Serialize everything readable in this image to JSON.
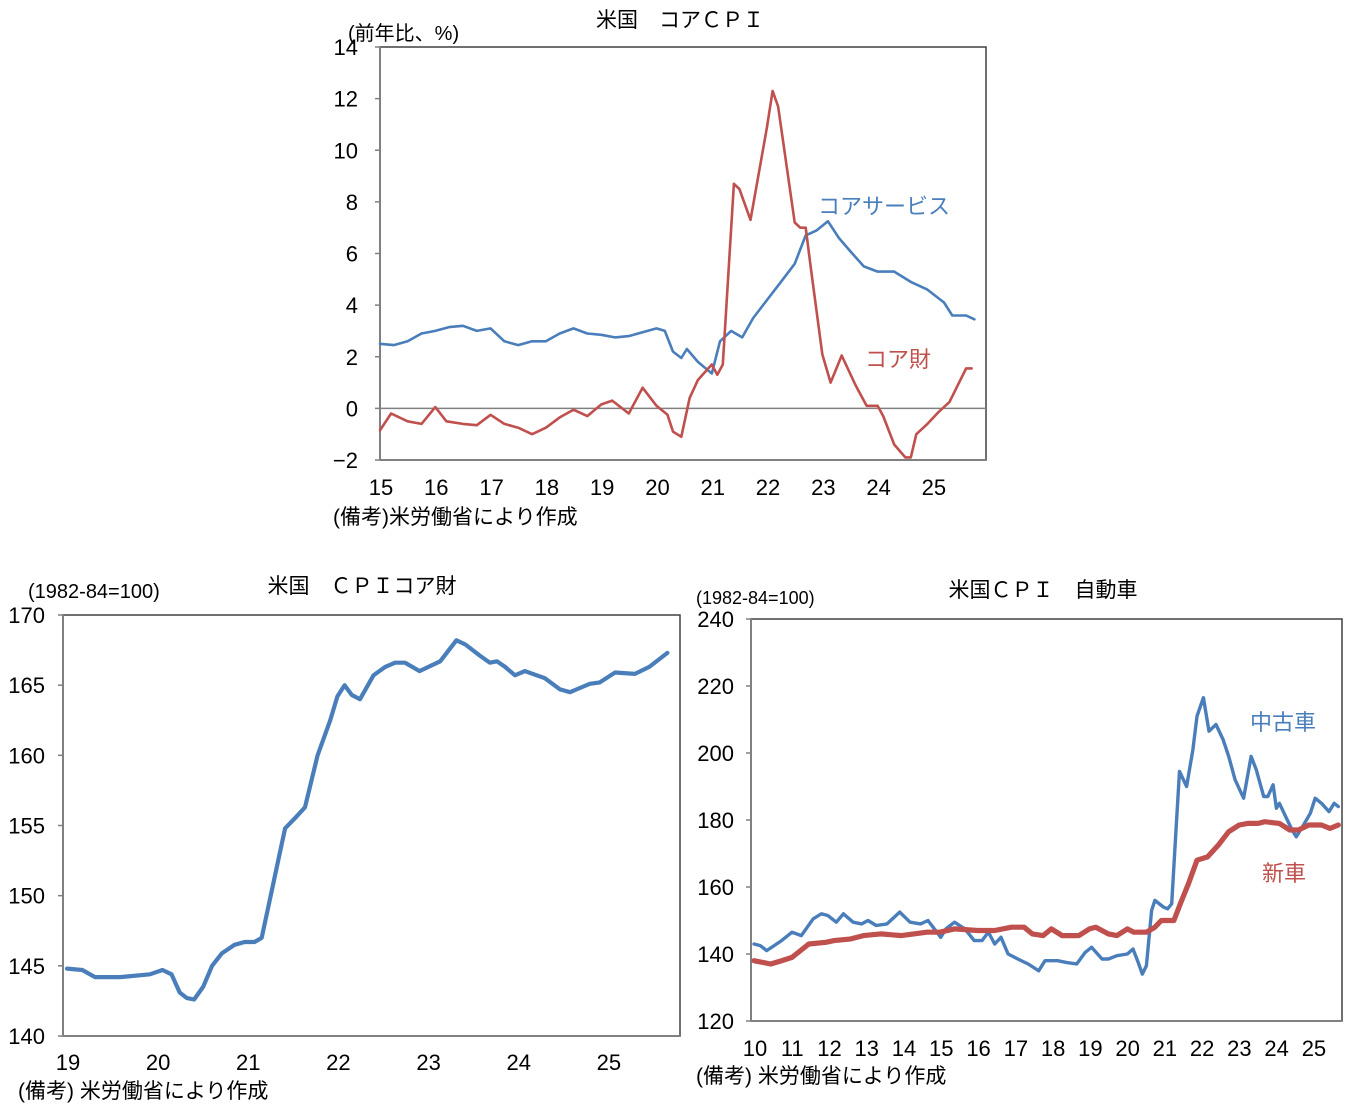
{
  "colors": {
    "blue": "#4a7ebb",
    "red": "#c0504d",
    "axis": "#808080",
    "frame": "#404040"
  },
  "chart_data": [
    {
      "id": "core-cpi",
      "type": "line",
      "title": "米国　コアＣＰＩ",
      "ylabel": "(前年比、%)",
      "source": "(備考)米労働省により作成",
      "xlim": [
        15,
        25.96
      ],
      "ylim": [
        -2,
        14
      ],
      "xticks": [
        15,
        16,
        17,
        18,
        19,
        20,
        21,
        22,
        23,
        24,
        25
      ],
      "xtick_labels": [
        "15",
        "16",
        "17",
        "18",
        "19",
        "20",
        "21",
        "22",
        "23",
        "24",
        "25"
      ],
      "yticks": [
        -2,
        0,
        2,
        4,
        6,
        8,
        10,
        12,
        14
      ],
      "ytick_labels": [
        "−2",
        "0",
        "2",
        "4",
        "6",
        "8",
        "10",
        "12",
        "14"
      ],
      "zero_line": true,
      "series": [
        {
          "name": "コアサービス",
          "color": "blue",
          "x": [
            15.0,
            15.25,
            15.5,
            15.75,
            16.0,
            16.25,
            16.5,
            16.75,
            17.0,
            17.25,
            17.5,
            17.75,
            18.0,
            18.25,
            18.5,
            18.75,
            19.0,
            19.25,
            19.5,
            19.75,
            20.0,
            20.15,
            20.3,
            20.45,
            20.55,
            20.75,
            21.0,
            21.15,
            21.35,
            21.55,
            21.75,
            22.0,
            22.25,
            22.5,
            22.7,
            22.9,
            23.1,
            23.3,
            23.5,
            23.75,
            24.0,
            24.3,
            24.6,
            24.9,
            25.2,
            25.35,
            25.6,
            25.75
          ],
          "y": [
            2.5,
            2.45,
            2.6,
            2.9,
            3.0,
            3.15,
            3.2,
            3.0,
            3.1,
            2.6,
            2.45,
            2.6,
            2.6,
            2.9,
            3.1,
            2.9,
            2.85,
            2.75,
            2.8,
            2.95,
            3.1,
            3.0,
            2.2,
            1.95,
            2.3,
            1.8,
            1.35,
            2.6,
            3.0,
            2.75,
            3.5,
            4.2,
            4.9,
            5.6,
            6.7,
            6.9,
            7.25,
            6.6,
            6.1,
            5.5,
            5.3,
            5.3,
            4.9,
            4.6,
            4.1,
            3.6,
            3.6,
            3.45
          ]
        },
        {
          "name": "コア財",
          "color": "red",
          "x": [
            15.0,
            15.2,
            15.5,
            15.75,
            16.0,
            16.2,
            16.5,
            16.75,
            17.0,
            17.25,
            17.5,
            17.75,
            18.0,
            18.25,
            18.5,
            18.75,
            19.0,
            19.2,
            19.5,
            19.75,
            20.0,
            20.2,
            20.3,
            20.45,
            20.6,
            20.75,
            21.0,
            21.1,
            21.2,
            21.4,
            21.5,
            21.7,
            22.0,
            22.1,
            22.2,
            22.5,
            22.6,
            22.7,
            22.8,
            23.0,
            23.15,
            23.35,
            23.6,
            23.8,
            24.0,
            24.1,
            24.3,
            24.5,
            24.6,
            24.7,
            24.9,
            25.1,
            25.3,
            25.6,
            25.7
          ],
          "y": [
            -0.85,
            -0.2,
            -0.5,
            -0.6,
            0.05,
            -0.5,
            -0.6,
            -0.65,
            -0.25,
            -0.6,
            -0.75,
            -1.0,
            -0.75,
            -0.35,
            -0.05,
            -0.3,
            0.15,
            0.3,
            -0.2,
            0.8,
            0.1,
            -0.25,
            -0.9,
            -1.1,
            0.4,
            1.1,
            1.7,
            1.3,
            1.7,
            8.7,
            8.5,
            7.3,
            10.9,
            12.3,
            11.7,
            7.2,
            7.0,
            7.0,
            5.3,
            2.1,
            1.0,
            2.05,
            0.9,
            0.1,
            0.1,
            -0.3,
            -1.4,
            -1.9,
            -1.9,
            -1.0,
            -0.6,
            -0.15,
            0.25,
            1.55,
            1.55
          ]
        }
      ]
    },
    {
      "id": "cpi-core-goods",
      "type": "line",
      "title": "米国　ＣＰＩコア財",
      "ylabel": "(1982-84=100)",
      "source": "(備考) 米労働省により作成",
      "xlim": [
        18.956,
        25.8
      ],
      "ylim": [
        140,
        170
      ],
      "xticks": [
        19,
        20,
        21,
        22,
        23,
        24,
        25
      ],
      "xtick_labels": [
        "19",
        "20",
        "21",
        "22",
        "23",
        "24",
        "25"
      ],
      "yticks": [
        140,
        145,
        150,
        155,
        160,
        165,
        170
      ],
      "ytick_labels": [
        "140",
        "145",
        "150",
        "155",
        "160",
        "165",
        "170"
      ],
      "series": [
        {
          "name": "CPIコア財",
          "color": "blue",
          "x": [
            19.0,
            19.17,
            19.31,
            19.59,
            19.92,
            20.06,
            20.16,
            20.25,
            20.33,
            20.41,
            20.51,
            20.61,
            20.72,
            20.86,
            20.97,
            21.08,
            21.16,
            21.31,
            21.42,
            21.54,
            21.64,
            21.78,
            21.92,
            22.0,
            22.08,
            22.16,
            22.25,
            22.4,
            22.53,
            22.64,
            22.75,
            22.91,
            23.14,
            23.32,
            23.42,
            23.58,
            23.69,
            23.77,
            23.86,
            23.97,
            24.08,
            24.3,
            24.47,
            24.58,
            24.69,
            24.8,
            24.91,
            25.08,
            25.3,
            25.46,
            25.66
          ],
          "y": [
            144.8,
            144.7,
            144.2,
            144.2,
            144.4,
            144.7,
            144.4,
            143.1,
            142.7,
            142.6,
            143.5,
            145.0,
            145.9,
            146.5,
            146.7,
            146.7,
            147.0,
            151.5,
            154.8,
            155.6,
            156.3,
            160.0,
            162.5,
            164.2,
            165.0,
            164.3,
            164.0,
            165.7,
            166.3,
            166.6,
            166.6,
            166.0,
            166.7,
            168.2,
            167.9,
            167.1,
            166.6,
            166.7,
            166.3,
            165.7,
            166.0,
            165.5,
            164.7,
            164.5,
            164.8,
            165.1,
            165.2,
            165.9,
            165.8,
            166.3,
            167.3
          ]
        }
      ]
    },
    {
      "id": "cpi-autos",
      "type": "line",
      "title": "米国ＣＰＩ　自動車",
      "ylabel": "(1982-84=100)",
      "source": "(備考) 米労働省により作成",
      "xlim": [
        9.92,
        25.78
      ],
      "ylim": [
        120,
        240
      ],
      "xticks": [
        10,
        11,
        12,
        13,
        14,
        15,
        16,
        17,
        18,
        19,
        20,
        21,
        22,
        23,
        24,
        25
      ],
      "xtick_labels": [
        "10",
        "11",
        "12",
        "13",
        "14",
        "15",
        "16",
        "17",
        "18",
        "19",
        "20",
        "21",
        "22",
        "23",
        "24",
        "25"
      ],
      "yticks": [
        120,
        140,
        160,
        180,
        200,
        220,
        240
      ],
      "ytick_labels": [
        "120",
        "140",
        "160",
        "180",
        "200",
        "220",
        "240"
      ],
      "series": [
        {
          "name": "中古車",
          "color": "blue",
          "x": [
            10.0,
            10.17,
            10.34,
            10.74,
            11.02,
            11.27,
            11.59,
            11.81,
            11.98,
            12.21,
            12.4,
            12.66,
            12.89,
            13.06,
            13.28,
            13.57,
            13.91,
            14.19,
            14.47,
            14.67,
            15.01,
            15.15,
            15.38,
            15.66,
            15.91,
            16.12,
            16.29,
            16.46,
            16.63,
            16.82,
            17.08,
            17.36,
            17.64,
            17.81,
            18.15,
            18.38,
            18.66,
            18.89,
            19.06,
            19.34,
            19.51,
            19.74,
            20.02,
            20.17,
            20.31,
            20.42,
            20.53,
            20.67,
            20.76,
            20.99,
            21.1,
            21.21,
            21.32,
            21.42,
            21.61,
            21.78,
            21.89,
            22.06,
            22.21,
            22.4,
            22.59,
            22.74,
            22.91,
            23.14,
            23.34,
            23.48,
            23.68,
            23.79,
            23.93,
            24.02,
            24.1,
            24.27,
            24.44,
            24.55,
            24.72,
            24.93,
            25.06,
            25.23,
            25.43,
            25.57,
            25.68
          ],
          "y": [
            143,
            142.5,
            141,
            144,
            146.5,
            145.5,
            150.5,
            152,
            151.5,
            149.5,
            152,
            149.5,
            149,
            150,
            148.5,
            149,
            152.5,
            149.5,
            149,
            150,
            145,
            147.5,
            149.5,
            147.5,
            144,
            144,
            146.5,
            143,
            145,
            140,
            138.5,
            137,
            135,
            138,
            138,
            137.5,
            137,
            140.5,
            142,
            138.5,
            138.5,
            139.5,
            140,
            141.5,
            137.5,
            134,
            136.5,
            153,
            156,
            154,
            153.5,
            155,
            176,
            194.5,
            190,
            201,
            211,
            216.5,
            206.5,
            208.5,
            204,
            199,
            192,
            186.5,
            199,
            195,
            187,
            187,
            190.5,
            183.5,
            185,
            181,
            177,
            175,
            178,
            182,
            186.5,
            185,
            182.5,
            185,
            184
          ]
        },
        {
          "name": "新車",
          "color": "red",
          "x": [
            10.0,
            10.45,
            10.74,
            11.02,
            11.47,
            11.93,
            12.15,
            12.6,
            12.94,
            13.4,
            13.96,
            14.64,
            14.98,
            15.38,
            16.0,
            16.46,
            16.91,
            17.25,
            17.47,
            17.76,
            17.98,
            18.27,
            18.72,
            19.0,
            19.17,
            19.51,
            19.74,
            20.02,
            20.19,
            20.53,
            20.76,
            20.93,
            21.27,
            21.44,
            21.66,
            21.89,
            22.17,
            22.46,
            22.74,
            23.02,
            23.25,
            23.53,
            23.7,
            24.1,
            24.38,
            24.61,
            24.89,
            25.23,
            25.46,
            25.68
          ],
          "y": [
            138,
            137,
            138,
            139,
            143,
            143.5,
            144,
            144.5,
            145.5,
            146,
            145.5,
            146.5,
            146.5,
            147.5,
            147,
            147,
            148,
            148,
            146,
            145.5,
            147.5,
            145.5,
            145.5,
            147.5,
            148,
            146,
            145.5,
            147.5,
            146.5,
            146.5,
            148,
            150,
            150,
            155,
            161,
            168,
            169,
            172.5,
            176.5,
            178.5,
            179,
            179,
            179.5,
            179,
            177,
            177,
            178.5,
            178.5,
            177.5,
            178.5
          ]
        }
      ]
    }
  ]
}
